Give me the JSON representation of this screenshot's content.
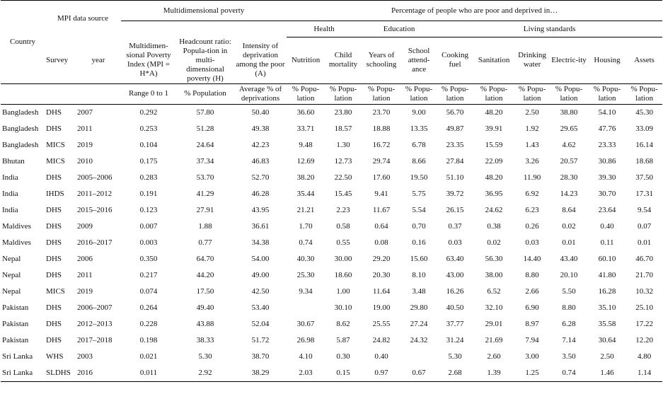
{
  "header": {
    "country": "Country",
    "mpi_source": "MPI data source",
    "survey": "Survey",
    "year": "year",
    "multidimensional_poverty": "Multidimensional poverty",
    "percentage_group": "Percentage of people who are poor and deprived in…",
    "health": "Health",
    "education": "Education",
    "living_standards": "Living standards",
    "columns": [
      "Multidimen-sional Poverty Index (MPI = H*A)",
      "Headcount ratio: Popula-tion in multi-dimensional poverty (H)",
      "Intensity of deprivation among the poor (A)",
      "Nutrition",
      "Child mortality",
      "Years of schooling",
      "School attend-ance",
      "Cooking fuel",
      "Sanitation",
      "Drinking water",
      "Electric-ity",
      "Housing",
      "Assets"
    ],
    "units": [
      "Range 0 to 1",
      "% Population",
      "Average % of deprivations",
      "% Popu-lation",
      "% Popu-lation",
      "% Popu-lation",
      "% Popu-lation",
      "% Popu-lation",
      "% Popu-lation",
      "% Popu-lation",
      "% Popu-lation",
      "% Popu-lation",
      "% Popu-lation"
    ]
  },
  "rows": [
    {
      "country": "Bangladesh",
      "survey": "DHS",
      "year": "2007",
      "values": [
        "0.292",
        "57.80",
        "50.40",
        "36.60",
        "23.80",
        "23.70",
        "9.00",
        "56.70",
        "48.20",
        "2.50",
        "38.80",
        "54.10",
        "45.30"
      ]
    },
    {
      "country": "Bangladesh",
      "survey": "DHS",
      "year": "2011",
      "values": [
        "0.253",
        "51.28",
        "49.38",
        "33.71",
        "18.57",
        "18.88",
        "13.35",
        "49.87",
        "39.91",
        "1.92",
        "29.65",
        "47.76",
        "33.09"
      ]
    },
    {
      "country": "Bangladesh",
      "survey": "MICS",
      "year": "2019",
      "values": [
        "0.104",
        "24.64",
        "42.23",
        "9.48",
        "1.30",
        "16.72",
        "6.78",
        "23.35",
        "15.59",
        "1.43",
        "4.62",
        "23.33",
        "16.14"
      ]
    },
    {
      "country": "Bhutan",
      "survey": "MICS",
      "year": "2010",
      "values": [
        "0.175",
        "37.34",
        "46.83",
        "12.69",
        "12.73",
        "29.74",
        "8.66",
        "27.84",
        "22.09",
        "3.26",
        "20.57",
        "30.86",
        "18.68"
      ]
    },
    {
      "country": "India",
      "survey": "DHS",
      "year": "2005–2006",
      "values": [
        "0.283",
        "53.70",
        "52.70",
        "38.20",
        "22.50",
        "17.60",
        "19.50",
        "51.10",
        "48.20",
        "11.90",
        "28.30",
        "39.30",
        "37.50"
      ]
    },
    {
      "country": "India",
      "survey": "IHDS",
      "year": "2011–2012",
      "values": [
        "0.191",
        "41.29",
        "46.28",
        "35.44",
        "15.45",
        "9.41",
        "5.75",
        "39.72",
        "36.95",
        "6.92",
        "14.23",
        "30.70",
        "17.31"
      ]
    },
    {
      "country": "India",
      "survey": "DHS",
      "year": "2015–2016",
      "values": [
        "0.123",
        "27.91",
        "43.95",
        "21.21",
        "2.23",
        "11.67",
        "5.54",
        "26.15",
        "24.62",
        "6.23",
        "8.64",
        "23.64",
        "9.54"
      ]
    },
    {
      "country": "Maldives",
      "survey": "DHS",
      "year": "2009",
      "values": [
        "0.007",
        "1.88",
        "36.61",
        "1.70",
        "0.58",
        "0.64",
        "0.70",
        "0.37",
        "0.38",
        "0.26",
        "0.02",
        "0.40",
        "0.07"
      ]
    },
    {
      "country": "Maldives",
      "survey": "DHS",
      "year": "2016–2017",
      "values": [
        "0.003",
        "0.77",
        "34.38",
        "0.74",
        "0.55",
        "0.08",
        "0.16",
        "0.03",
        "0.02",
        "0.03",
        "0.01",
        "0.11",
        "0.01"
      ]
    },
    {
      "country": "Nepal",
      "survey": "DHS",
      "year": "2006",
      "values": [
        "0.350",
        "64.70",
        "54.00",
        "40.30",
        "30.00",
        "29.20",
        "15.60",
        "63.40",
        "56.30",
        "14.40",
        "43.40",
        "60.10",
        "46.70"
      ]
    },
    {
      "country": "Nepal",
      "survey": "DHS",
      "year": "2011",
      "values": [
        "0.217",
        "44.20",
        "49.00",
        "25.30",
        "18.60",
        "20.30",
        "8.10",
        "43.00",
        "38.00",
        "8.80",
        "20.10",
        "41.80",
        "21.70"
      ]
    },
    {
      "country": "Nepal",
      "survey": "MICS",
      "year": "2019",
      "values": [
        "0.074",
        "17.50",
        "42.50",
        "9.34",
        "1.00",
        "11.64",
        "3.48",
        "16.26",
        "6.52",
        "2.66",
        "5.50",
        "16.28",
        "10.32"
      ]
    },
    {
      "country": "Pakistan",
      "survey": "DHS",
      "year": "2006–2007",
      "values": [
        "0.264",
        "49.40",
        "53.40",
        "",
        "30.10",
        "19.00",
        "29.80",
        "40.50",
        "32.10",
        "6.90",
        "8.80",
        "35.10",
        "25.10"
      ]
    },
    {
      "country": "Pakistan",
      "survey": "DHS",
      "year": "2012–2013",
      "values": [
        "0.228",
        "43.88",
        "52.04",
        "30.67",
        "8.62",
        "25.55",
        "27.24",
        "37.77",
        "29.01",
        "8.97",
        "6.28",
        "35.58",
        "17.22"
      ]
    },
    {
      "country": "Pakistan",
      "survey": "DHS",
      "year": "2017–2018",
      "values": [
        "0.198",
        "38.33",
        "51.72",
        "26.98",
        "5.87",
        "24.82",
        "24.32",
        "31.24",
        "21.69",
        "7.94",
        "7.14",
        "30.64",
        "12.20"
      ]
    },
    {
      "country": "Sri Lanka",
      "survey": "WHS",
      "year": "2003",
      "values": [
        "0.021",
        "5.30",
        "38.70",
        "4.10",
        "0.30",
        "0.40",
        "",
        "5.30",
        "2.60",
        "3.00",
        "3.50",
        "2.50",
        "4.80"
      ]
    },
    {
      "country": "Sri Lanka",
      "survey": "SLDHS",
      "year": "2016",
      "values": [
        "0.011",
        "2.92",
        "38.29",
        "2.03",
        "0.15",
        "0.97",
        "0.67",
        "2.68",
        "1.39",
        "1.25",
        "0.74",
        "1.46",
        "1.14"
      ]
    }
  ]
}
